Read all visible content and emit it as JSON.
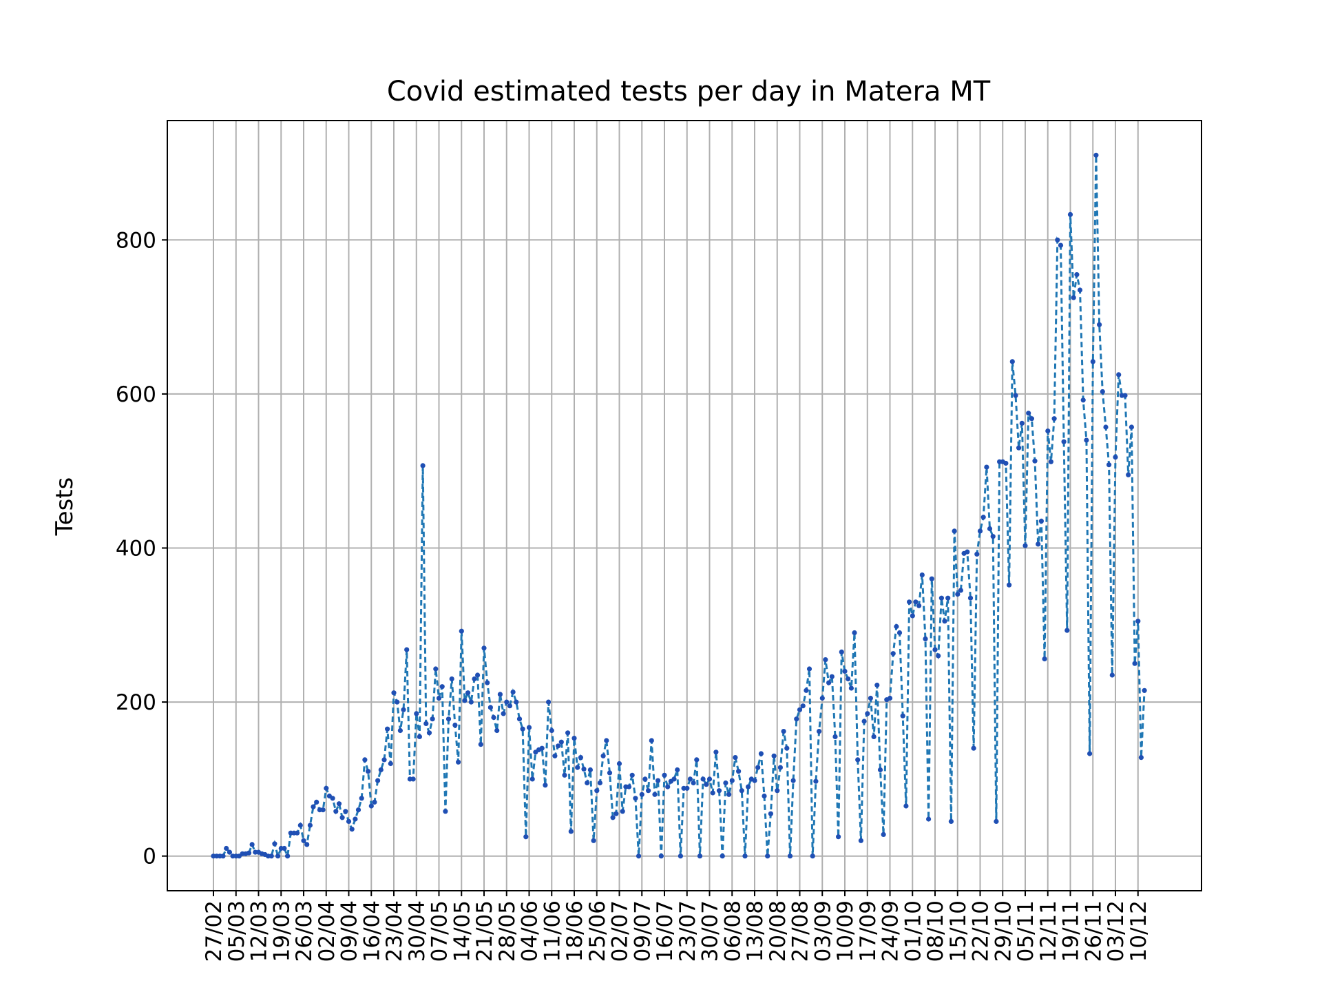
{
  "chart_data": {
    "type": "line",
    "title": "Covid estimated tests per day in Matera MT",
    "ylabel": "Tests",
    "xlabel": "",
    "ylim": [
      -45,
      955
    ],
    "yticks": [
      0,
      200,
      400,
      600,
      800
    ],
    "grid": true,
    "x_start": "27/02",
    "xtick_labels": [
      "27/02",
      "05/03",
      "12/03",
      "19/03",
      "26/03",
      "02/04",
      "09/04",
      "16/04",
      "23/04",
      "30/04",
      "07/05",
      "14/05",
      "21/05",
      "28/05",
      "04/06",
      "11/06",
      "18/06",
      "25/06",
      "02/07",
      "09/07",
      "16/07",
      "23/07",
      "30/07",
      "06/08",
      "13/08",
      "20/08",
      "27/08",
      "03/09",
      "10/09",
      "17/09",
      "24/09",
      "01/10",
      "08/10",
      "15/10",
      "22/10",
      "29/10",
      "05/11",
      "12/11",
      "19/11",
      "26/11",
      "03/12",
      "10/12"
    ],
    "series": [
      {
        "color": "#1f77b4",
        "marker_color": "#1f4fb4",
        "values": [
          0,
          0,
          0,
          0,
          10,
          5,
          0,
          0,
          0,
          3,
          3,
          4,
          15,
          5,
          5,
          3,
          2,
          0,
          0,
          16,
          0,
          10,
          10,
          0,
          30,
          30,
          30,
          40,
          20,
          15,
          40,
          64,
          70,
          60,
          60,
          88,
          78,
          75,
          58,
          68,
          50,
          58,
          45,
          35,
          48,
          60,
          75,
          125,
          110,
          65,
          70,
          98,
          112,
          125,
          165,
          120,
          212,
          200,
          163,
          190,
          268,
          100,
          100,
          185,
          155,
          507,
          172,
          160,
          178,
          243,
          205,
          220,
          58,
          178,
          230,
          170,
          122,
          292,
          202,
          212,
          200,
          230,
          235,
          145,
          270,
          225,
          193,
          180,
          163,
          210,
          185,
          200,
          195,
          213,
          200,
          178,
          165,
          25,
          167,
          100,
          135,
          138,
          140,
          92,
          200,
          163,
          130,
          143,
          148,
          105,
          160,
          32,
          153,
          115,
          128,
          113,
          95,
          112,
          20,
          85,
          95,
          130,
          150,
          108,
          50,
          55,
          120,
          58,
          90,
          90,
          105,
          75,
          0,
          80,
          100,
          85,
          150,
          80,
          98,
          0,
          105,
          90,
          97,
          100,
          112,
          0,
          88,
          88,
          100,
          95,
          125,
          0,
          100,
          93,
          100,
          82,
          135,
          85,
          0,
          95,
          80,
          98,
          128,
          110,
          85,
          0,
          90,
          100,
          98,
          115,
          133,
          78,
          0,
          55,
          130,
          85,
          115,
          162,
          140,
          0,
          98,
          178,
          190,
          195,
          215,
          243,
          0,
          97,
          162,
          205,
          255,
          225,
          233,
          155,
          25,
          265,
          240,
          230,
          218,
          290,
          125,
          20,
          175,
          185,
          205,
          155,
          222,
          112,
          28,
          203,
          205,
          263,
          298,
          290,
          182,
          65,
          330,
          312,
          330,
          325,
          365,
          282,
          48,
          360,
          268,
          260,
          335,
          305,
          335,
          45,
          422,
          340,
          345,
          393,
          395,
          335,
          140,
          392,
          422,
          440,
          505,
          425,
          415,
          45,
          512,
          512,
          510,
          352,
          642,
          598,
          530,
          562,
          403,
          575,
          568,
          513,
          405,
          435,
          256,
          552,
          512,
          568,
          800,
          793,
          538,
          293,
          833,
          725,
          755,
          735,
          592,
          540,
          133,
          642,
          910,
          690,
          603,
          557,
          508,
          235,
          518,
          625,
          598,
          598,
          495,
          557,
          250,
          305,
          128,
          215
        ]
      }
    ]
  }
}
